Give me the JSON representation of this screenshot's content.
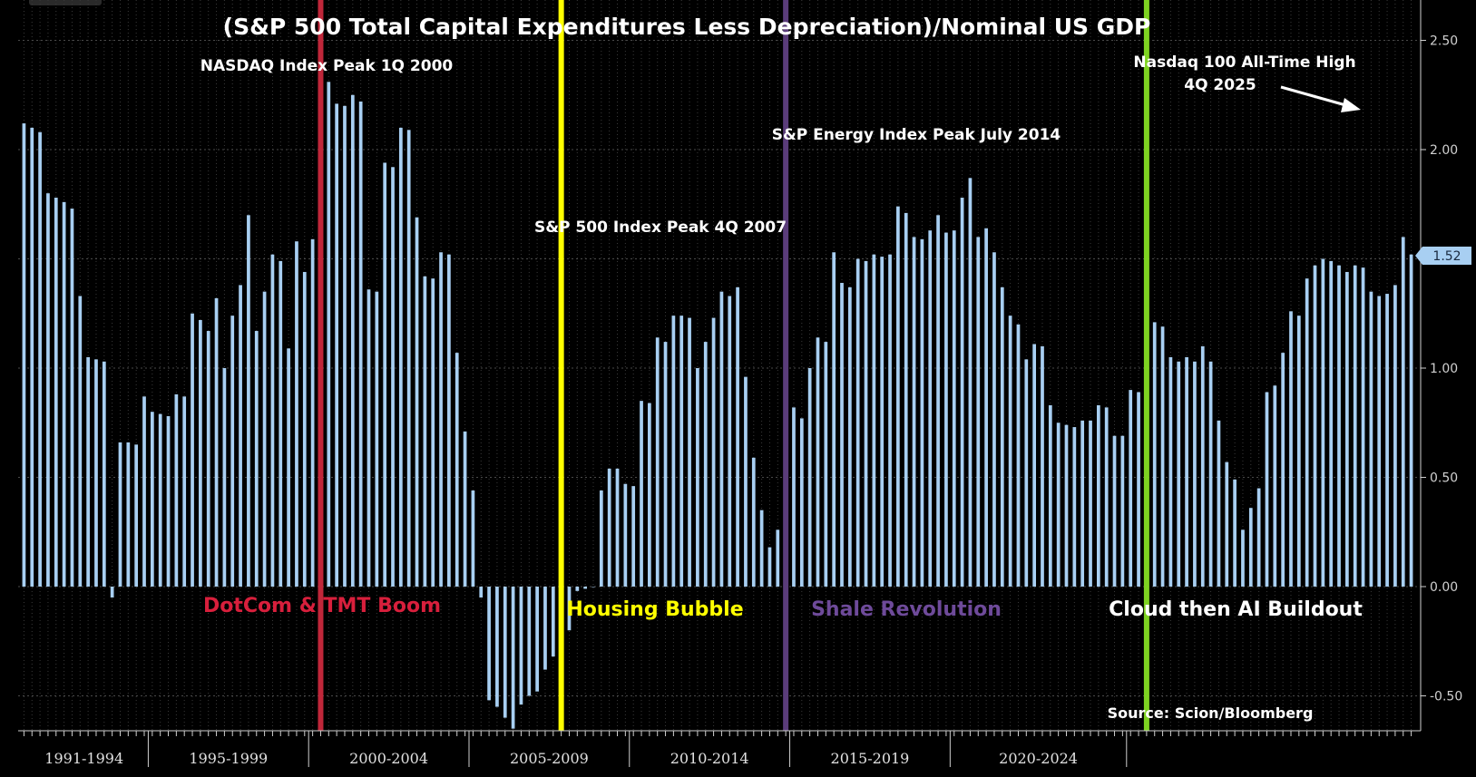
{
  "chart_data": {
    "type": "bar",
    "title": "(S&P 500 Total Capital Expenditures Less Depreciation)/Nominal US GDP",
    "xlabel": "",
    "ylabel": "",
    "ylim": [
      -0.65,
      2.65
    ],
    "y_ticks": [
      "2.50",
      "2.00",
      "1.50",
      "1.00",
      "0.50",
      "0.00",
      "-0.50"
    ],
    "y_tick_values": [
      2.5,
      2.0,
      1.5,
      1.0,
      0.5,
      0.0,
      -0.5
    ],
    "x_period_labels": [
      "1991-1994",
      "1995-1999",
      "2000-2004",
      "2005-2009",
      "2010-2014",
      "2015-2019",
      "2020-2024"
    ],
    "x_period_start_index": [
      0,
      16,
      36,
      56,
      76,
      96,
      116
    ],
    "grid": true,
    "bar_color": "#a8cff2",
    "last_value_label": "1.52",
    "source": "Source: Scion/Bloomberg",
    "values": [
      2.12,
      2.1,
      2.08,
      1.8,
      1.78,
      1.76,
      1.73,
      1.33,
      1.05,
      1.04,
      1.03,
      -0.05,
      0.66,
      0.66,
      0.65,
      0.87,
      0.8,
      0.79,
      0.78,
      0.88,
      0.87,
      1.25,
      1.22,
      1.17,
      1.32,
      1.0,
      1.24,
      1.38,
      1.7,
      1.17,
      1.35,
      1.52,
      1.49,
      1.09,
      1.58,
      1.44,
      1.59,
      1.75,
      2.31,
      2.21,
      2.2,
      2.25,
      2.22,
      1.36,
      1.35,
      1.94,
      1.92,
      2.1,
      2.09,
      1.69,
      1.42,
      1.41,
      1.53,
      1.52,
      1.07,
      0.71,
      0.44,
      -0.05,
      -0.52,
      -0.55,
      -0.6,
      -0.65,
      -0.54,
      -0.5,
      -0.48,
      -0.38,
      -0.32,
      -0.28,
      -0.2,
      -0.02,
      -0.01,
      0.0,
      0.44,
      0.54,
      0.54,
      0.47,
      0.46,
      0.85,
      0.84,
      1.14,
      1.12,
      1.24,
      1.24,
      1.23,
      1.0,
      1.12,
      1.23,
      1.35,
      1.33,
      1.37,
      0.96,
      0.59,
      0.35,
      0.18,
      0.26,
      0.43,
      0.82,
      0.77,
      1.0,
      1.14,
      1.12,
      1.53,
      1.39,
      1.37,
      1.5,
      1.49,
      1.52,
      1.51,
      1.52,
      1.74,
      1.71,
      1.6,
      1.59,
      1.63,
      1.7,
      1.62,
      1.63,
      1.78,
      1.87,
      1.6,
      1.64,
      1.53,
      1.37,
      1.24,
      1.2,
      1.04,
      1.11,
      1.1,
      0.83,
      0.75,
      0.74,
      0.73,
      0.76,
      0.76,
      0.83,
      0.82,
      0.69,
      0.69,
      0.9,
      0.89,
      0.96,
      1.21,
      1.19,
      1.05,
      1.03,
      1.05,
      1.03,
      1.1,
      1.03,
      0.76,
      0.57,
      0.49,
      0.26,
      0.36,
      0.45,
      0.89,
      0.92,
      1.07,
      1.26,
      1.24,
      1.41,
      1.47,
      1.5,
      1.49,
      1.47,
      1.44,
      1.47,
      1.46,
      1.35,
      1.33,
      1.34,
      1.38,
      1.6,
      1.52
    ]
  },
  "markers": [
    {
      "name": "nasdaq-peak-2000",
      "index": 37,
      "color": "#c0273a",
      "label": "NASDAQ Index Peak 1Q 2000"
    },
    {
      "name": "sp500-peak-2007",
      "index": 67,
      "color": "#ffff00",
      "label": "S&P 500 Index Peak 4Q 2007"
    },
    {
      "name": "energy-peak-2014",
      "index": 95,
      "color": "#5a3c7a",
      "label": "S&P Energy Index Peak July 2014"
    },
    {
      "name": "nasdaq100-high-2025",
      "index": 140,
      "color": "#7ed321",
      "label": "Nasdaq 100 All-Time High",
      "label2": "4Q 2025"
    }
  ],
  "eras": [
    {
      "label": "DotCom & TMT Boom",
      "color": "#d81f3c"
    },
    {
      "label": "Housing Bubble",
      "color": "#ffff00"
    },
    {
      "label": "Shale Revolution",
      "color": "#6e4a9a"
    },
    {
      "label": "Cloud then AI Buildout",
      "color": "#ffffff"
    }
  ]
}
